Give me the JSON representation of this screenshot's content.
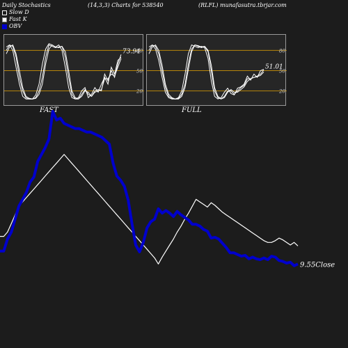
{
  "header": {
    "left": "Daily Stochastics",
    "center": "(14,3,3) Charts for 538540",
    "right": "(RLFL) munafasutra.tbrjar.com"
  },
  "legend": [
    {
      "label": "Slow  D",
      "color": "#ffffff",
      "style": "outline"
    },
    {
      "label": "Fast K",
      "color": "#ffffff",
      "style": "filled"
    },
    {
      "label": "OBV",
      "color": "#0000cc",
      "style": "filled"
    }
  ],
  "chart_data": [
    {
      "type": "line",
      "label": "FAST",
      "ylim": [
        0,
        100
      ],
      "yticks": [
        20,
        50,
        80
      ],
      "reference_lines": [
        20,
        50,
        80
      ],
      "last_value_label": "73.94",
      "series": [
        {
          "values": [
            80,
            88,
            86,
            70,
            40,
            20,
            10,
            8,
            8,
            10,
            20,
            40,
            70,
            88,
            86,
            84,
            85,
            86,
            70,
            40,
            15,
            8,
            8,
            15,
            22,
            15,
            12,
            20,
            22,
            20,
            45,
            35,
            50,
            40,
            60,
            73.94
          ]
        },
        {
          "values": [
            85,
            88,
            80,
            55,
            30,
            12,
            8,
            8,
            8,
            14,
            30,
            60,
            82,
            90,
            88,
            85,
            88,
            80,
            55,
            25,
            10,
            8,
            10,
            20,
            25,
            10,
            15,
            25,
            18,
            30,
            40,
            30,
            55,
            45,
            65,
            70
          ]
        },
        {
          "values": [
            75,
            85,
            88,
            75,
            50,
            25,
            12,
            9,
            8,
            9,
            15,
            30,
            60,
            82,
            88,
            85,
            84,
            86,
            78,
            50,
            20,
            10,
            8,
            12,
            20,
            18,
            12,
            18,
            20,
            22,
            38,
            38,
            45,
            42,
            55,
            68
          ]
        }
      ]
    },
    {
      "type": "line",
      "label": "FULL",
      "ylim": [
        0,
        100
      ],
      "yticks": [
        20,
        50,
        80
      ],
      "reference_lines": [
        20,
        50,
        80
      ],
      "last_value_label": "51.01",
      "series": [
        {
          "values": [
            80,
            88,
            86,
            75,
            50,
            25,
            12,
            9,
            8,
            9,
            15,
            30,
            60,
            82,
            88,
            86,
            84,
            86,
            78,
            50,
            20,
            10,
            8,
            12,
            20,
            20,
            15,
            20,
            25,
            28,
            38,
            38,
            40,
            42,
            45,
            51.01
          ]
        },
        {
          "values": [
            75,
            85,
            88,
            80,
            58,
            30,
            15,
            10,
            8,
            8,
            12,
            25,
            52,
            78,
            88,
            87,
            85,
            86,
            80,
            58,
            25,
            12,
            8,
            10,
            18,
            22,
            18,
            18,
            22,
            26,
            34,
            38,
            40,
            41,
            43,
            48
          ]
        },
        {
          "values": [
            85,
            88,
            82,
            65,
            40,
            18,
            10,
            8,
            8,
            10,
            20,
            45,
            75,
            88,
            86,
            84,
            86,
            84,
            68,
            35,
            12,
            8,
            10,
            18,
            24,
            16,
            14,
            24,
            26,
            30,
            42,
            36,
            45,
            40,
            50,
            52
          ]
        }
      ]
    },
    {
      "type": "line",
      "last_value_label": "9.55Close",
      "series": [
        {
          "name": "OBV",
          "color": "#0000cc",
          "values": [
            18,
            18,
            32,
            40,
            55,
            70,
            78,
            86,
            98,
            104,
            122,
            130,
            138,
            148,
            180,
            170,
            172,
            166,
            164,
            162,
            160,
            160,
            158,
            156,
            156,
            154,
            152,
            150,
            146,
            142,
            120,
            105,
            100,
            93,
            77,
            50,
            25,
            17,
            28,
            45,
            52,
            55,
            67,
            62,
            65,
            62,
            58,
            64,
            60,
            57,
            54,
            49,
            49,
            47,
            43,
            41,
            33,
            34,
            32,
            27,
            22,
            16,
            16,
            14,
            12,
            13,
            9,
            11,
            9,
            8,
            10,
            8,
            12,
            11,
            7,
            6,
            4,
            5,
            1,
            3
          ]
        },
        {
          "name": "",
          "color": "#ffffff",
          "values": [
            35,
            35,
            40,
            50,
            60,
            70,
            75,
            80,
            85,
            90,
            95,
            100,
            105,
            110,
            115,
            120,
            125,
            130,
            125,
            120,
            115,
            110,
            105,
            100,
            95,
            90,
            85,
            80,
            75,
            70,
            65,
            60,
            55,
            50,
            45,
            40,
            35,
            30,
            25,
            20,
            15,
            10,
            3,
            11,
            18,
            25,
            32,
            40,
            47,
            55,
            62,
            70,
            78,
            75,
            72,
            69,
            74,
            71,
            67,
            63,
            60,
            57,
            54,
            51,
            48,
            45,
            42,
            39,
            36,
            33,
            30,
            28,
            28,
            30,
            33,
            31,
            28,
            25,
            28,
            24
          ]
        }
      ]
    }
  ]
}
